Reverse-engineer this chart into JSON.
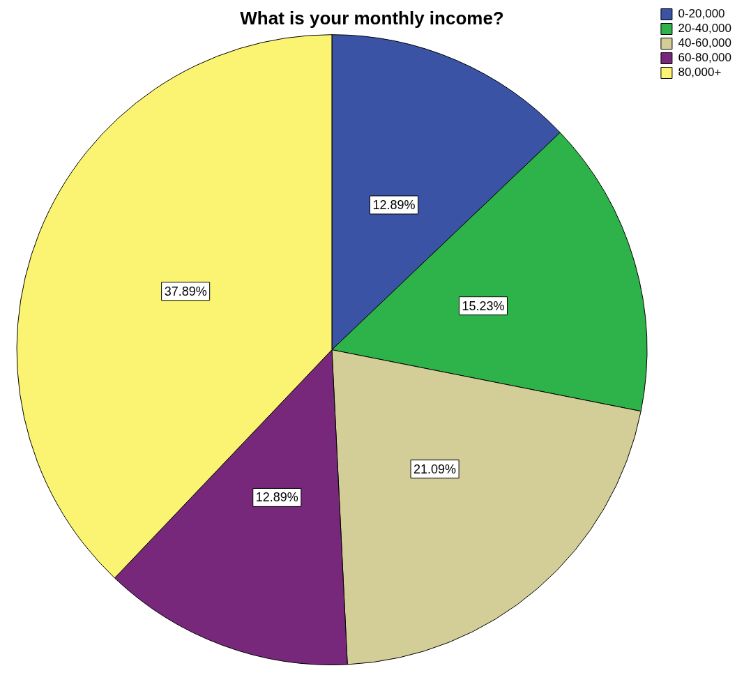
{
  "chart_data": {
    "type": "pie",
    "title": "What is your monthly income?",
    "categories": [
      "0-20,000",
      "20-40,000",
      "40-60,000",
      "60-80,000",
      "80,000+"
    ],
    "values": [
      12.89,
      15.23,
      21.09,
      12.89,
      37.89
    ],
    "colors": [
      "#3a53a4",
      "#2db34a",
      "#d3ce97",
      "#77287b",
      "#fbf372"
    ],
    "value_labels": [
      "12.89%",
      "15.23%",
      "21.09%",
      "12.89%",
      "37.89%"
    ],
    "legend": "top right"
  }
}
